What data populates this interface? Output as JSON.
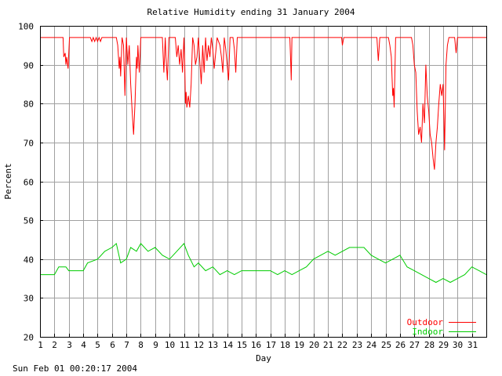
{
  "footer": {
    "timestamp": "Sun Feb 01 00:20:17 2004"
  },
  "chart_data": {
    "type": "line",
    "title": "Relative Humidity ending 31 January 2004",
    "xlabel": "Day",
    "ylabel": "Percent",
    "xlim": [
      1,
      32
    ],
    "ylim": [
      20,
      100
    ],
    "x_ticks": [
      1,
      2,
      3,
      4,
      5,
      6,
      7,
      8,
      9,
      10,
      11,
      12,
      13,
      14,
      15,
      16,
      17,
      18,
      19,
      20,
      21,
      22,
      23,
      24,
      25,
      26,
      27,
      28,
      29,
      30,
      31
    ],
    "y_ticks": [
      20,
      30,
      40,
      50,
      60,
      70,
      80,
      90,
      100
    ],
    "grid": true,
    "legend_position": "bottom-right",
    "colors": {
      "outdoor": "#ff0000",
      "indoor": "#00cc00",
      "grid": "#a0a0a0",
      "axis": "#000000"
    },
    "series": [
      {
        "name": "Outdoor",
        "color": "#ff0000",
        "points": [
          [
            1.0,
            97
          ],
          [
            2.0,
            97
          ],
          [
            2.6,
            97
          ],
          [
            2.65,
            92
          ],
          [
            2.75,
            93
          ],
          [
            2.8,
            90
          ],
          [
            2.85,
            92
          ],
          [
            2.95,
            89
          ],
          [
            3.0,
            93
          ],
          [
            3.05,
            97
          ],
          [
            4.5,
            97
          ],
          [
            4.6,
            96
          ],
          [
            4.7,
            97
          ],
          [
            4.8,
            96
          ],
          [
            4.9,
            97
          ],
          [
            5.0,
            96
          ],
          [
            5.1,
            97
          ],
          [
            5.2,
            96
          ],
          [
            5.3,
            97
          ],
          [
            6.3,
            97
          ],
          [
            6.4,
            95
          ],
          [
            6.5,
            89
          ],
          [
            6.55,
            92
          ],
          [
            6.6,
            87
          ],
          [
            6.7,
            97
          ],
          [
            6.8,
            95
          ],
          [
            6.9,
            82
          ],
          [
            7.0,
            97
          ],
          [
            7.1,
            90
          ],
          [
            7.2,
            95
          ],
          [
            7.3,
            85
          ],
          [
            7.4,
            78
          ],
          [
            7.5,
            72
          ],
          [
            7.6,
            80
          ],
          [
            7.7,
            92
          ],
          [
            7.75,
            89
          ],
          [
            7.8,
            95
          ],
          [
            7.9,
            88
          ],
          [
            8.0,
            97
          ],
          [
            9.5,
            97
          ],
          [
            9.6,
            88
          ],
          [
            9.7,
            97
          ],
          [
            9.75,
            92
          ],
          [
            9.85,
            86
          ],
          [
            9.95,
            97
          ],
          [
            10.4,
            97
          ],
          [
            10.5,
            92
          ],
          [
            10.6,
            95
          ],
          [
            10.7,
            90
          ],
          [
            10.8,
            94
          ],
          [
            10.9,
            88
          ],
          [
            11.0,
            97
          ],
          [
            11.05,
            91
          ],
          [
            11.1,
            80
          ],
          [
            11.15,
            83
          ],
          [
            11.2,
            79
          ],
          [
            11.3,
            82
          ],
          [
            11.4,
            79
          ],
          [
            11.5,
            85
          ],
          [
            11.6,
            97
          ],
          [
            11.7,
            95
          ],
          [
            11.8,
            90
          ],
          [
            11.9,
            92
          ],
          [
            12.0,
            97
          ],
          [
            12.1,
            91
          ],
          [
            12.2,
            85
          ],
          [
            12.3,
            95
          ],
          [
            12.4,
            88
          ],
          [
            12.5,
            97
          ],
          [
            12.6,
            91
          ],
          [
            12.7,
            95
          ],
          [
            12.8,
            92
          ],
          [
            12.9,
            97
          ],
          [
            13.0,
            94
          ],
          [
            13.1,
            89
          ],
          [
            13.3,
            97
          ],
          [
            13.5,
            95
          ],
          [
            13.6,
            92
          ],
          [
            13.7,
            88
          ],
          [
            13.8,
            97
          ],
          [
            13.9,
            94
          ],
          [
            14.0,
            90
          ],
          [
            14.1,
            86
          ],
          [
            14.2,
            97
          ],
          [
            14.4,
            97
          ],
          [
            14.5,
            94
          ],
          [
            14.6,
            88
          ],
          [
            14.7,
            97
          ],
          [
            18.35,
            97
          ],
          [
            18.4,
            92
          ],
          [
            18.45,
            86
          ],
          [
            18.5,
            97
          ],
          [
            21.95,
            97
          ],
          [
            22.0,
            95
          ],
          [
            22.1,
            97
          ],
          [
            24.4,
            97
          ],
          [
            24.5,
            91
          ],
          [
            24.6,
            97
          ],
          [
            25.2,
            97
          ],
          [
            25.3,
            95
          ],
          [
            25.4,
            92
          ],
          [
            25.5,
            82
          ],
          [
            25.55,
            84
          ],
          [
            25.6,
            79
          ],
          [
            25.7,
            97
          ],
          [
            26.8,
            97
          ],
          [
            26.9,
            95
          ],
          [
            27.0,
            90
          ],
          [
            27.1,
            88
          ],
          [
            27.2,
            78
          ],
          [
            27.3,
            72
          ],
          [
            27.4,
            74
          ],
          [
            27.5,
            70
          ],
          [
            27.6,
            80
          ],
          [
            27.7,
            75
          ],
          [
            27.8,
            90
          ],
          [
            27.9,
            82
          ],
          [
            28.0,
            78
          ],
          [
            28.1,
            72
          ],
          [
            28.2,
            70
          ],
          [
            28.3,
            66
          ],
          [
            28.4,
            63
          ],
          [
            28.5,
            70
          ],
          [
            28.6,
            74
          ],
          [
            28.7,
            80
          ],
          [
            28.8,
            85
          ],
          [
            28.9,
            82
          ],
          [
            29.0,
            85
          ],
          [
            29.1,
            68
          ],
          [
            29.2,
            90
          ],
          [
            29.3,
            95
          ],
          [
            29.4,
            97
          ],
          [
            29.8,
            97
          ],
          [
            29.9,
            93
          ],
          [
            30.0,
            97
          ],
          [
            32.0,
            97
          ]
        ]
      },
      {
        "name": "Indoor",
        "color": "#00cc00",
        "points": [
          [
            1.0,
            36
          ],
          [
            2.0,
            36
          ],
          [
            2.3,
            38
          ],
          [
            2.8,
            38
          ],
          [
            3.0,
            37
          ],
          [
            4.0,
            37
          ],
          [
            4.3,
            39
          ],
          [
            5.0,
            40
          ],
          [
            5.5,
            42
          ],
          [
            6.0,
            43
          ],
          [
            6.3,
            44
          ],
          [
            6.6,
            39
          ],
          [
            7.0,
            40
          ],
          [
            7.3,
            43
          ],
          [
            7.7,
            42
          ],
          [
            8.0,
            44
          ],
          [
            8.5,
            42
          ],
          [
            9.0,
            43
          ],
          [
            9.5,
            41
          ],
          [
            10.0,
            40
          ],
          [
            10.5,
            42
          ],
          [
            11.0,
            44
          ],
          [
            11.3,
            41
          ],
          [
            11.7,
            38
          ],
          [
            12.0,
            39
          ],
          [
            12.5,
            37
          ],
          [
            13.0,
            38
          ],
          [
            13.5,
            36
          ],
          [
            14.0,
            37
          ],
          [
            14.5,
            36
          ],
          [
            15.0,
            37
          ],
          [
            16.0,
            37
          ],
          [
            17.0,
            37
          ],
          [
            17.5,
            36
          ],
          [
            18.0,
            37
          ],
          [
            18.5,
            36
          ],
          [
            19.0,
            37
          ],
          [
            19.5,
            38
          ],
          [
            20.0,
            40
          ],
          [
            20.5,
            41
          ],
          [
            21.0,
            42
          ],
          [
            21.5,
            41
          ],
          [
            22.0,
            42
          ],
          [
            22.5,
            43
          ],
          [
            23.0,
            43
          ],
          [
            23.5,
            43
          ],
          [
            24.0,
            41
          ],
          [
            24.5,
            40
          ],
          [
            25.0,
            39
          ],
          [
            25.5,
            40
          ],
          [
            26.0,
            41
          ],
          [
            26.5,
            38
          ],
          [
            27.0,
            37
          ],
          [
            27.5,
            36
          ],
          [
            28.0,
            35
          ],
          [
            28.5,
            34
          ],
          [
            29.0,
            35
          ],
          [
            29.5,
            34
          ],
          [
            30.0,
            35
          ],
          [
            30.5,
            36
          ],
          [
            31.0,
            38
          ],
          [
            31.5,
            37
          ],
          [
            32.0,
            36
          ]
        ]
      }
    ]
  }
}
